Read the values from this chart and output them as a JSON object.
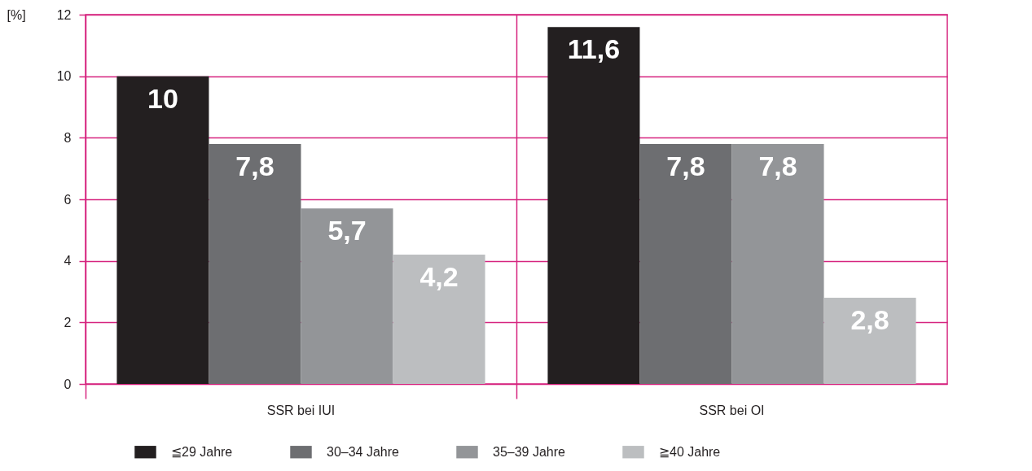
{
  "chart_data": {
    "type": "bar",
    "ylabel": "[%]",
    "categories": [
      "SSR bei IUI",
      "SSR bei OI"
    ],
    "series": [
      {
        "name": "≦29 Jahre",
        "color": "#231f20",
        "values": [
          10,
          11.6
        ],
        "value_labels": [
          "10",
          "11,6"
        ]
      },
      {
        "name": "30–34 Jahre",
        "color": "#6d6e71",
        "values": [
          7.8,
          7.8
        ],
        "value_labels": [
          "7,8",
          "7,8"
        ]
      },
      {
        "name": "35–39 Jahre",
        "color": "#939598",
        "values": [
          5.7,
          7.8
        ],
        "value_labels": [
          "5,7",
          "7,8"
        ]
      },
      {
        "name": "≧40 Jahre",
        "color": "#bcbec0",
        "values": [
          4.2,
          2.8
        ],
        "value_labels": [
          "4,2",
          "2,8"
        ]
      }
    ],
    "ylim": [
      0,
      12
    ],
    "yticks": [
      0,
      2,
      4,
      6,
      8,
      10,
      12
    ],
    "grid": true,
    "legend": "bottom"
  }
}
